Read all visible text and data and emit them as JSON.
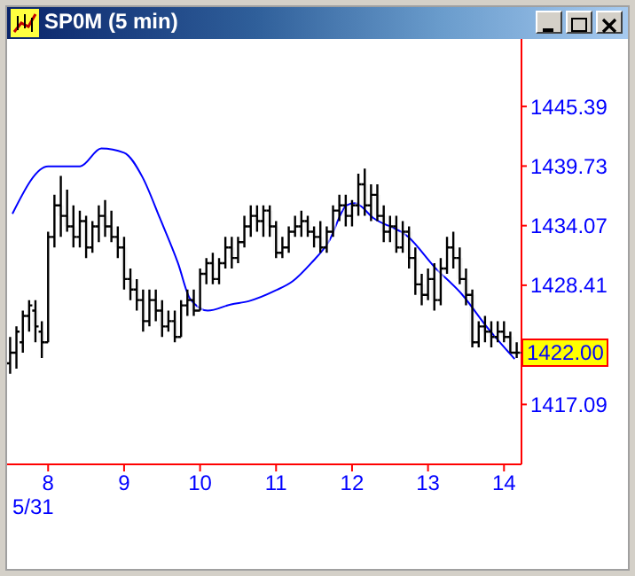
{
  "chart_data": {
    "type": "candlestick",
    "title": "SP0M (5 min)",
    "x": [
      7.5,
      7.583,
      7.667,
      7.75,
      7.833,
      7.917,
      8,
      8.083,
      8.167,
      8.25,
      8.333,
      8.417,
      8.5,
      8.583,
      8.667,
      8.75,
      8.833,
      8.917,
      9,
      9.083,
      9.167,
      9.25,
      9.333,
      9.417,
      9.5,
      9.583,
      9.667,
      9.75,
      9.833,
      9.917,
      10,
      10.083,
      10.167,
      10.25,
      10.333,
      10.417,
      10.5,
      10.583,
      10.667,
      10.75,
      10.833,
      10.917,
      11,
      11.083,
      11.167,
      11.25,
      11.333,
      11.417,
      11.5,
      11.583,
      11.667,
      11.75,
      11.833,
      11.917,
      12,
      12.083,
      12.167,
      12.25,
      12.333,
      12.417,
      12.5,
      12.583,
      12.667,
      12.75,
      12.833,
      12.917,
      13,
      13.083,
      13.167,
      13.25,
      13.333,
      13.417,
      13.5,
      13.583,
      13.667,
      13.75,
      13.833,
      13.917,
      14,
      14.083,
      14.167
    ],
    "ohlc": [
      [
        1421,
        1423.5,
        1420,
        1422
      ],
      [
        1422,
        1424.5,
        1420.5,
        1424
      ],
      [
        1423,
        1426,
        1422,
        1425.5
      ],
      [
        1425.5,
        1427,
        1424,
        1426.5
      ],
      [
        1426,
        1427,
        1423,
        1424.5
      ],
      [
        1424,
        1425,
        1421.5,
        1423
      ],
      [
        1423,
        1433.5,
        1423,
        1433
      ],
      [
        1433,
        1437,
        1432,
        1436
      ],
      [
        1436,
        1438.8,
        1433,
        1435
      ],
      [
        1435,
        1437.5,
        1433.5,
        1434
      ],
      [
        1434,
        1436,
        1432,
        1433
      ],
      [
        1433,
        1435.5,
        1432,
        1434.5
      ],
      [
        1434.5,
        1435,
        1431,
        1432
      ],
      [
        1432,
        1434.5,
        1431.5,
        1434
      ],
      [
        1434,
        1436,
        1432.5,
        1435
      ],
      [
        1435,
        1436.5,
        1433,
        1434
      ],
      [
        1434,
        1435.5,
        1432.5,
        1433
      ],
      [
        1433,
        1434,
        1431,
        1432
      ],
      [
        1432,
        1433,
        1428,
        1429
      ],
      [
        1429,
        1430,
        1427,
        1428
      ],
      [
        1428,
        1429,
        1426,
        1427
      ],
      [
        1427,
        1428,
        1424,
        1425
      ],
      [
        1425,
        1428,
        1424.5,
        1427
      ],
      [
        1427,
        1428,
        1425,
        1426
      ],
      [
        1426,
        1427,
        1423.5,
        1424.5
      ],
      [
        1424.5,
        1426,
        1424,
        1425
      ],
      [
        1425,
        1426,
        1423,
        1423.5
      ],
      [
        1423.5,
        1427,
        1423.5,
        1426.5
      ],
      [
        1426.5,
        1428,
        1425.5,
        1427
      ],
      [
        1427,
        1428,
        1425.5,
        1426
      ],
      [
        1426,
        1430,
        1426,
        1429.5
      ],
      [
        1429.5,
        1431,
        1428.5,
        1430.5
      ],
      [
        1430.5,
        1431.5,
        1428.5,
        1429
      ],
      [
        1429,
        1431,
        1428.5,
        1430.5
      ],
      [
        1430.5,
        1433,
        1430,
        1432
      ],
      [
        1432,
        1433,
        1430,
        1431
      ],
      [
        1431,
        1433,
        1430.5,
        1432.5
      ],
      [
        1432.5,
        1435,
        1432,
        1434
      ],
      [
        1434,
        1436,
        1433,
        1435
      ],
      [
        1435,
        1436,
        1433.5,
        1434.5
      ],
      [
        1434.5,
        1436,
        1433,
        1435.5
      ],
      [
        1435.5,
        1436,
        1433,
        1434
      ],
      [
        1434,
        1434.5,
        1431,
        1431.5
      ],
      [
        1431.5,
        1433,
        1431,
        1432
      ],
      [
        1432,
        1434,
        1431.5,
        1433.5
      ],
      [
        1433.5,
        1435,
        1433,
        1434
      ],
      [
        1434,
        1435.5,
        1433,
        1434.5
      ],
      [
        1434.5,
        1435,
        1433,
        1433.5
      ],
      [
        1433.5,
        1434,
        1432,
        1433
      ],
      [
        1433,
        1434.5,
        1431.5,
        1432
      ],
      [
        1432,
        1434,
        1431.5,
        1433.5
      ],
      [
        1433.5,
        1436,
        1433,
        1435.5
      ],
      [
        1435.5,
        1437,
        1434.5,
        1436
      ],
      [
        1436,
        1437,
        1434,
        1435
      ],
      [
        1435,
        1436.5,
        1434,
        1436
      ],
      [
        1436,
        1439,
        1435,
        1438
      ],
      [
        1438,
        1439.5,
        1435,
        1436
      ],
      [
        1436,
        1438,
        1434.5,
        1437
      ],
      [
        1437,
        1438,
        1434.5,
        1435
      ],
      [
        1435,
        1436,
        1432.5,
        1433.5
      ],
      [
        1433.5,
        1435,
        1432.5,
        1434
      ],
      [
        1434,
        1435,
        1431.5,
        1432
      ],
      [
        1432,
        1434.5,
        1431.5,
        1433.5
      ],
      [
        1433.5,
        1434,
        1430,
        1431
      ],
      [
        1431,
        1432,
        1427.5,
        1428.5
      ],
      [
        1428.5,
        1429.5,
        1426.5,
        1427.5
      ],
      [
        1427.5,
        1430,
        1427,
        1429
      ],
      [
        1429,
        1430.5,
        1426,
        1427
      ],
      [
        1427,
        1431,
        1426.5,
        1430
      ],
      [
        1430,
        1433,
        1429.5,
        1432
      ],
      [
        1432,
        1433.5,
        1430,
        1431
      ],
      [
        1431,
        1432,
        1428.5,
        1429
      ],
      [
        1429,
        1430,
        1426.5,
        1427.5
      ],
      [
        1427.5,
        1428,
        1422.5,
        1423
      ],
      [
        1423,
        1425,
        1422.5,
        1424.5
      ],
      [
        1424.5,
        1425.5,
        1423,
        1424
      ],
      [
        1424,
        1425,
        1422.5,
        1423.5
      ],
      [
        1423.5,
        1425,
        1423,
        1424
      ],
      [
        1424,
        1425,
        1423,
        1423.5
      ],
      [
        1423.5,
        1424,
        1422,
        1422
      ],
      [
        1422,
        1423,
        1421.5,
        1422
      ]
    ],
    "series": [
      {
        "type": "line",
        "color": "#0000ff",
        "x": [
          7.53,
          8,
          8.42,
          8.7,
          9,
          9.24,
          9.47,
          9.71,
          9.87,
          10.1,
          10.41,
          10.64,
          10.99,
          11.22,
          11.46,
          11.69,
          11.93,
          12.04,
          12.28,
          12.74,
          13.09,
          13.44,
          13.79,
          14.14
        ],
        "values": [
          1435.2,
          1439.7,
          1439.7,
          1441.4,
          1441,
          1438.7,
          1434.8,
          1430.5,
          1427.1,
          1426,
          1426.6,
          1426.9,
          1427.9,
          1428.8,
          1430.5,
          1432.5,
          1436,
          1436.2,
          1434.8,
          1433,
          1430.1,
          1427.6,
          1424.3,
          1421.4
        ]
      }
    ],
    "xlim": [
      7.46,
      14.23
    ],
    "xticks": [
      8,
      9,
      10,
      11,
      12,
      13,
      14
    ],
    "ylim": [
      1411.4,
      1451.8
    ],
    "yticks": [
      1417.09,
      1428.41,
      1434.07,
      1439.73,
      1445.39
    ],
    "annotations": [
      {
        "text": "1422.00",
        "x": 14.167,
        "y": 1422
      },
      "5/31"
    ]
  }
}
